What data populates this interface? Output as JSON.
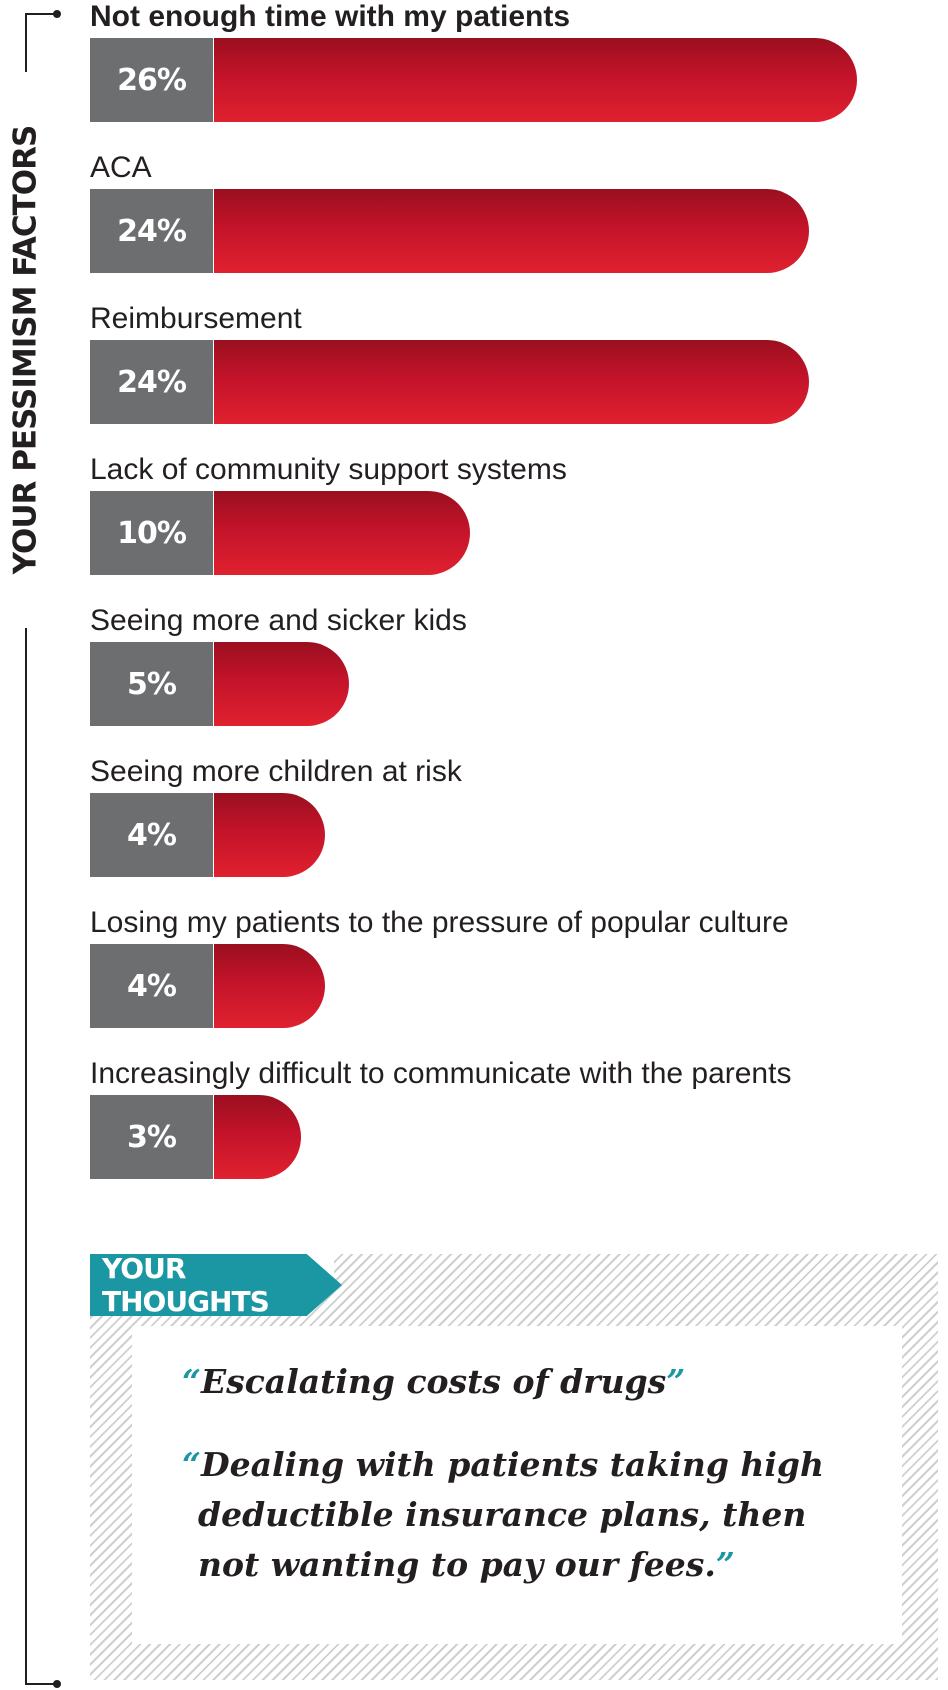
{
  "side_title": "YOUR PESSIMISM FACTORS",
  "chart_data": {
    "type": "bar",
    "orientation": "horizontal",
    "categories": [
      "Not enough time with my patients",
      "ACA",
      "Reimbursement",
      "Lack of community support systems",
      "Seeing more and sicker kids",
      "Seeing more children at risk",
      "Losing my patients to the pressure of popular culture",
      "Increasingly difficult to communicate with the parents"
    ],
    "values": [
      26,
      24,
      24,
      10,
      5,
      4,
      4,
      3
    ],
    "value_labels": [
      "26%",
      "24%",
      "24%",
      "10%",
      "5%",
      "4%",
      "4%",
      "3%"
    ],
    "unit": "%",
    "colors": {
      "bar": "#c3132a",
      "bar_dark": "#9a0f1f",
      "label_box": "#6d6e70"
    },
    "grid": false,
    "legend": "none"
  },
  "thoughts": {
    "tag": "YOUR THOUGHTS",
    "accent_color": "#1b97a3",
    "open_quote": "“",
    "close_quote": "”",
    "quotes": [
      {
        "lines": [
          "Escalating costs of drugs"
        ]
      },
      {
        "lines": [
          "Dealing with patients taking high",
          "deductible insurance plans, then",
          "not wanting to pay our fees."
        ]
      }
    ]
  }
}
